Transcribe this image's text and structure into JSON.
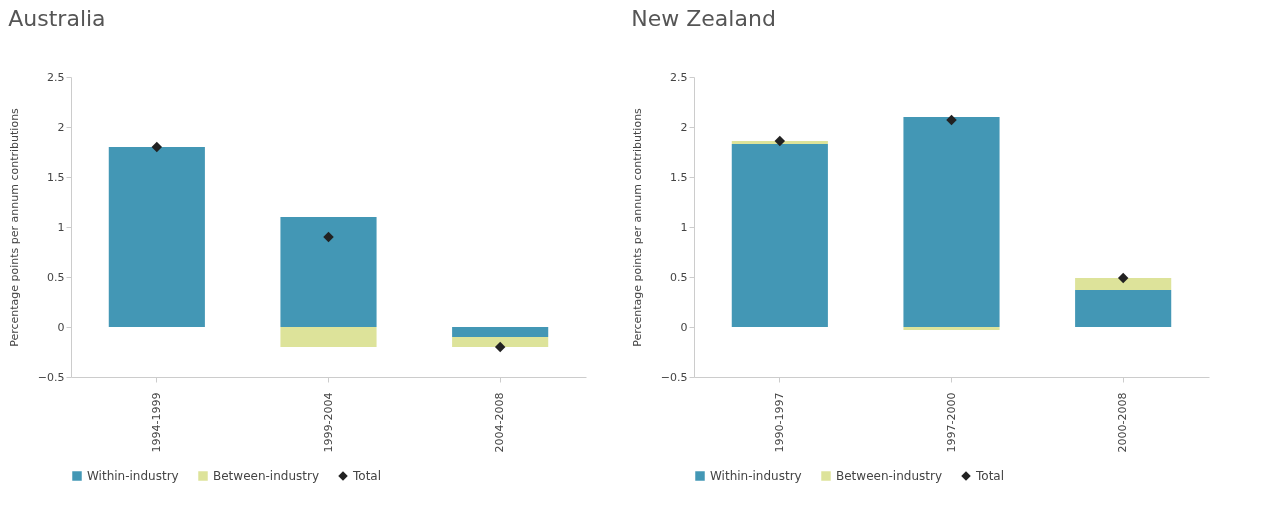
{
  "chart_data": [
    {
      "type": "bar",
      "title": "Australia",
      "ylabel": "Percentage points per annum contributions",
      "categories": [
        "1994-1999",
        "1999-2004",
        "2004-2008"
      ],
      "stacked": true,
      "legend": "bottom",
      "grid": false,
      "marker": "diamond",
      "ylim": [
        -0.5,
        2.5
      ],
      "yticks": [
        -0.5,
        0,
        0.5,
        1,
        1.5,
        2,
        2.5
      ],
      "series": [
        {
          "name": "Within-industry",
          "type": "bar",
          "color": "#4397b5",
          "values": [
            1.8,
            1.1,
            -0.1
          ]
        },
        {
          "name": "Between-industry",
          "type": "bar",
          "color": "#dde39a",
          "values": [
            0,
            -0.2,
            -0.1
          ]
        },
        {
          "name": "Total",
          "type": "scatter",
          "color": "#222222",
          "values": [
            1.8,
            0.9,
            -0.2
          ]
        }
      ]
    },
    {
      "type": "bar",
      "title": "New Zealand",
      "ylabel": "Percentage points per annum contributions",
      "categories": [
        "1990-1997",
        "1997-2000",
        "2000-2008"
      ],
      "stacked": true,
      "legend": "bottom",
      "grid": false,
      "marker": "diamond",
      "ylim": [
        -0.5,
        2.5
      ],
      "yticks": [
        -0.5,
        0,
        0.5,
        1,
        1.5,
        2,
        2.5
      ],
      "series": [
        {
          "name": "Within-industry",
          "type": "bar",
          "color": "#4397b5",
          "values": [
            1.83,
            2.1,
            0.37
          ]
        },
        {
          "name": "Between-industry",
          "type": "bar",
          "color": "#dde39a",
          "values": [
            0.03,
            -0.03,
            0.12
          ]
        },
        {
          "name": "Total",
          "type": "scatter",
          "color": "#222222",
          "values": [
            1.86,
            2.07,
            0.49
          ]
        }
      ]
    }
  ]
}
